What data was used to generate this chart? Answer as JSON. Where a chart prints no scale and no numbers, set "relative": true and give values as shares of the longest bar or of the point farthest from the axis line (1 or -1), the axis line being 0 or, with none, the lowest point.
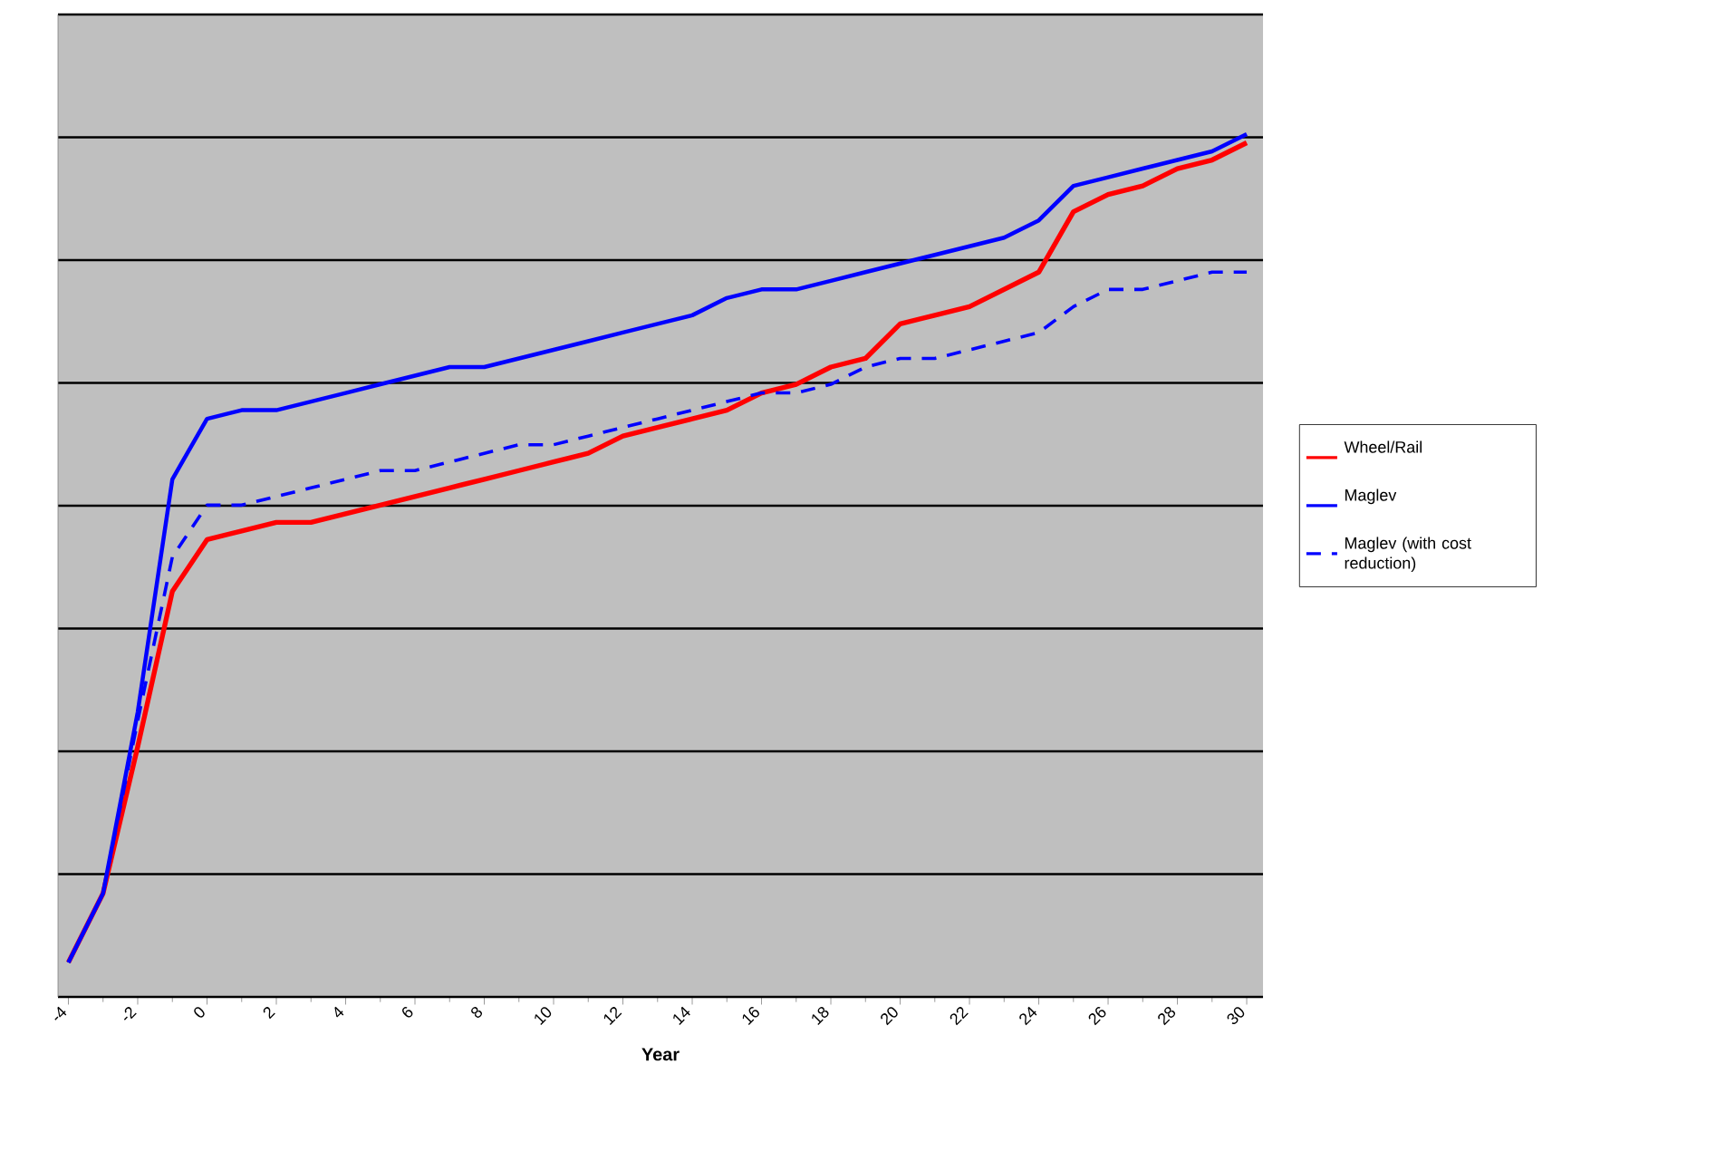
{
  "chart_data": {
    "type": "line",
    "xlabel": "Year",
    "relative": true,
    "grid": "y",
    "legend": "right",
    "x": [
      -4,
      -3,
      -2,
      -1,
      0,
      1,
      2,
      3,
      4,
      5,
      6,
      7,
      8,
      9,
      10,
      11,
      12,
      13,
      14,
      15,
      16,
      17,
      18,
      19,
      20,
      21,
      22,
      23,
      24,
      25,
      26,
      27,
      28,
      29,
      30
    ],
    "xlim": [
      -4.3,
      30.47
    ],
    "xticks": [
      -4,
      -2,
      0,
      2,
      4,
      6,
      8,
      10,
      12,
      14,
      16,
      18,
      20,
      22,
      24,
      26,
      28,
      30
    ],
    "series": [
      {
        "name": "Wheel/Rail",
        "color": "#ff0000",
        "line_style": "solid",
        "values": [
          0.04,
          0.12,
          0.29,
          0.47,
          0.53,
          0.54,
          0.55,
          0.55,
          0.56,
          0.57,
          0.58,
          0.59,
          0.6,
          0.61,
          0.62,
          0.63,
          0.65,
          0.66,
          0.67,
          0.68,
          0.7,
          0.71,
          0.73,
          0.74,
          0.78,
          0.79,
          0.8,
          0.82,
          0.84,
          0.91,
          0.93,
          0.94,
          0.96,
          0.97,
          0.99
        ]
      },
      {
        "name": "Maglev",
        "color": "#0000ff",
        "line_style": "solid",
        "values": [
          0.04,
          0.12,
          0.33,
          0.6,
          0.67,
          0.68,
          0.68,
          0.69,
          0.7,
          0.71,
          0.72,
          0.73,
          0.73,
          0.74,
          0.75,
          0.76,
          0.77,
          0.78,
          0.79,
          0.81,
          0.82,
          0.82,
          0.83,
          0.84,
          0.85,
          0.86,
          0.87,
          0.88,
          0.9,
          0.94,
          0.95,
          0.96,
          0.97,
          0.98,
          1
        ]
      },
      {
        "name": "Maglev (with cost reduction)",
        "color": "#0000ff",
        "line_style": "dashed",
        "values": [
          0.04,
          0.12,
          0.32,
          0.51,
          0.57,
          0.57,
          0.58,
          0.59,
          0.6,
          0.61,
          0.61,
          0.62,
          0.63,
          0.64,
          0.64,
          0.65,
          0.66,
          0.67,
          0.68,
          0.69,
          0.7,
          0.7,
          0.71,
          0.73,
          0.74,
          0.74,
          0.75,
          0.76,
          0.77,
          0.8,
          0.82,
          0.82,
          0.83,
          0.84,
          0.84
        ]
      }
    ]
  }
}
